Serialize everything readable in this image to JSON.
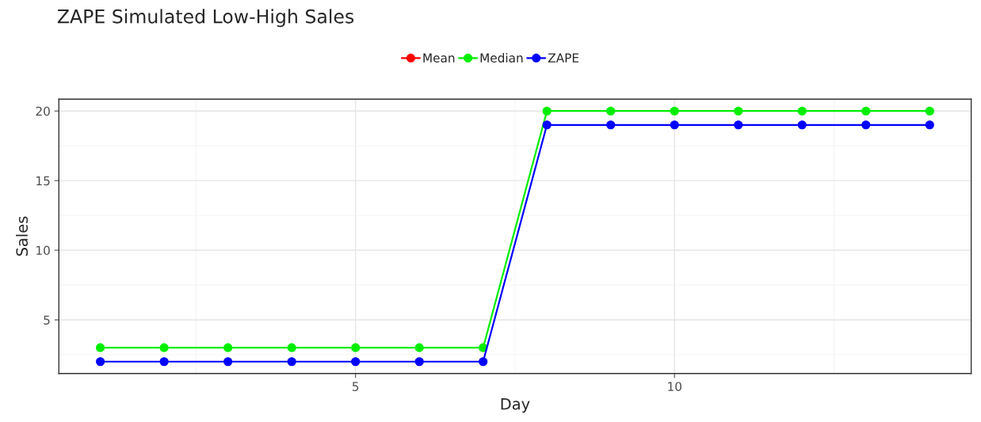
{
  "chart_data": {
    "type": "line",
    "title": "ZAPE Simulated Low-High Sales",
    "xlabel": "Day",
    "ylabel": "Sales",
    "x": [
      1,
      2,
      3,
      4,
      5,
      6,
      7,
      8,
      9,
      10,
      11,
      12,
      13,
      14
    ],
    "series": [
      {
        "name": "Mean",
        "color": "#ff0000",
        "values": [
          null,
          null,
          null,
          null,
          null,
          null,
          null,
          null,
          null,
          null,
          null,
          null,
          null,
          null
        ]
      },
      {
        "name": "Median",
        "color": "#00ee00",
        "values": [
          3,
          3,
          3,
          3,
          3,
          3,
          3,
          20,
          20,
          20,
          20,
          20,
          20,
          20
        ]
      },
      {
        "name": "ZAPE",
        "color": "#0000ff",
        "values": [
          2,
          2,
          2,
          2,
          2,
          2,
          2,
          19,
          19,
          19,
          19,
          19,
          19,
          19
        ]
      }
    ],
    "xlim": [
      0.35,
      14.65
    ],
    "xticks": [
      5,
      10
    ],
    "ylim": [
      1.15,
      20.85
    ],
    "yticks": [
      5,
      10,
      15,
      20
    ],
    "grid": true,
    "legend": "top",
    "marker": "circle",
    "line_style": "solid"
  }
}
